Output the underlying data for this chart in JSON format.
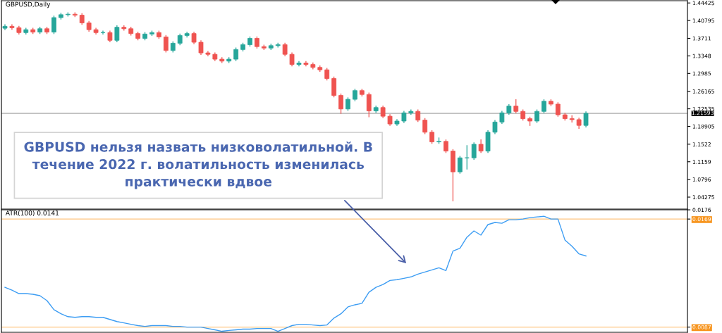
{
  "chart_data": [
    {
      "type": "candlestick",
      "title": "GBPUSD,Daily",
      "annotations": [
        "GBPUSD нельзя назвать низковолатильной. В\nтечение 2022 г. волатильность изменилась\nпрактически вдвое"
      ],
      "colors": [
        "#26a69a",
        "#ef5350",
        "#ef5350",
        "#26a69a",
        "#ef5350",
        "#26a69a",
        "#ef5350",
        "#26a69a",
        "#26a69a",
        "#26a69a",
        "#ef5350",
        "#ef5350",
        "#ef5350",
        "#ef5350",
        "#26a69a",
        "#ef5350",
        "#26a69a",
        "#ef5350",
        "#ef5350",
        "#ef5350",
        "#26a69a",
        "#26a69a",
        "#ef5350",
        "#ef5350",
        "#26a69a",
        "#26a69a",
        "#26a69a",
        "#ef5350",
        "#ef5350",
        "#ef5350",
        "#ef5350",
        "#ef5350",
        "#26a69a",
        "#26a69a",
        "#26a69a",
        "#26a69a",
        "#ef5350",
        "#ef5350",
        "#26a69a",
        "#26a69a",
        "#ef5350",
        "#ef5350",
        "#26a69a",
        "#ef5350",
        "#ef5350",
        "#ef5350",
        "#ef5350",
        "#ef5350",
        "#ef5350",
        "#26a69a",
        "#26a69a",
        "#ef5350",
        "#ef5350",
        "#26a69a",
        "#ef5350",
        "#ef5350",
        "#26a69a",
        "#26a69a",
        "#26a69a",
        "#ef5350",
        "#ef5350",
        "#ef5350",
        "#26a69a",
        "#ef5350",
        "#ef5350",
        "#26a69a",
        "#26a69a",
        "#26a69a",
        "#ef5350",
        "#26a69a",
        "#26a69a",
        "#26a69a",
        "#26a69a",
        "#ef5350",
        "#ef5350",
        "#ef5350",
        "#26a69a",
        "#26a69a",
        "#ef5350",
        "#ef5350",
        "#ef5350",
        "#ef5350",
        "#ef5350",
        "#26a69a",
        null,
        null,
        null,
        null,
        null,
        null,
        null,
        null,
        null,
        null,
        null,
        null,
        null,
        null
      ],
      "ylim": [
        1.018,
        1.449
      ],
      "yticks": [
        1.04275,
        1.0796,
        1.1159,
        1.1522,
        1.18905,
        1.22535,
        1.26165,
        1.2985,
        1.3348,
        1.3711,
        1.40795,
        1.44425
      ],
      "ref_lines": [
        {
          "axis": "y",
          "value": 1.21593,
          "label": "1.21593",
          "color": "#b0b0b0"
        }
      ],
      "categories": [
        null,
        null,
        null,
        null,
        null,
        null,
        null,
        null,
        null,
        null,
        null,
        null,
        null,
        null,
        null,
        null,
        null,
        null,
        null,
        null,
        null,
        null,
        null,
        null,
        null,
        null,
        null,
        null,
        null,
        null,
        null,
        null,
        null,
        null,
        null,
        null,
        null,
        null,
        null,
        null,
        null,
        null,
        null,
        null,
        null,
        null,
        null,
        null,
        null,
        null,
        null,
        null,
        null,
        null,
        null,
        null,
        null,
        null,
        null,
        null,
        null,
        null,
        null,
        null,
        null,
        null,
        null,
        null,
        null,
        null,
        null,
        null,
        null,
        null,
        null,
        null,
        null,
        null,
        null,
        null,
        null,
        null,
        null,
        null,
        null,
        null,
        null,
        null,
        null,
        null,
        null,
        null,
        null,
        null,
        null,
        null,
        null,
        null
      ],
      "ohlc": [
        [
          1.392,
          1.4,
          1.388,
          1.396
        ],
        [
          1.396,
          1.4,
          1.389,
          1.393
        ],
        [
          1.393,
          1.397,
          1.379,
          1.383
        ],
        [
          1.383,
          1.393,
          1.379,
          1.389
        ],
        [
          1.389,
          1.393,
          1.38,
          1.384
        ],
        [
          1.384,
          1.395,
          1.38,
          1.391
        ],
        [
          1.391,
          1.395,
          1.38,
          1.384
        ],
        [
          1.384,
          1.418,
          1.38,
          1.414
        ],
        [
          1.414,
          1.424,
          1.41,
          1.42
        ],
        [
          1.42,
          1.425,
          1.416,
          1.421
        ],
        [
          1.421,
          1.425,
          1.415,
          1.419
        ],
        [
          1.419,
          1.423,
          1.399,
          1.403
        ],
        [
          1.403,
          1.407,
          1.385,
          1.389
        ],
        [
          1.389,
          1.393,
          1.379,
          1.383
        ],
        [
          1.383,
          1.387,
          1.379,
          1.383
        ],
        [
          1.383,
          1.387,
          1.363,
          1.367
        ],
        [
          1.367,
          1.398,
          1.363,
          1.394
        ],
        [
          1.394,
          1.398,
          1.387,
          1.391
        ],
        [
          1.391,
          1.395,
          1.377,
          1.381
        ],
        [
          1.381,
          1.385,
          1.367,
          1.371
        ],
        [
          1.371,
          1.384,
          1.367,
          1.38
        ],
        [
          1.38,
          1.387,
          1.376,
          1.383
        ],
        [
          1.383,
          1.387,
          1.37,
          1.374
        ],
        [
          1.374,
          1.378,
          1.342,
          1.346
        ],
        [
          1.346,
          1.365,
          1.342,
          1.361
        ],
        [
          1.361,
          1.381,
          1.357,
          1.377
        ],
        [
          1.377,
          1.385,
          1.373,
          1.381
        ],
        [
          1.381,
          1.385,
          1.359,
          1.363
        ],
        [
          1.363,
          1.367,
          1.337,
          1.341
        ],
        [
          1.341,
          1.345,
          1.334,
          1.338
        ],
        [
          1.338,
          1.342,
          1.324,
          1.328
        ],
        [
          1.328,
          1.332,
          1.32,
          1.324
        ],
        [
          1.324,
          1.332,
          1.32,
          1.328
        ],
        [
          1.328,
          1.352,
          1.324,
          1.348
        ],
        [
          1.348,
          1.362,
          1.344,
          1.358
        ],
        [
          1.358,
          1.375,
          1.354,
          1.371
        ],
        [
          1.371,
          1.375,
          1.35,
          1.354
        ],
        [
          1.354,
          1.358,
          1.347,
          1.351
        ],
        [
          1.351,
          1.36,
          1.347,
          1.356
        ],
        [
          1.356,
          1.362,
          1.352,
          1.358
        ],
        [
          1.358,
          1.362,
          1.334,
          1.338
        ],
        [
          1.338,
          1.342,
          1.313,
          1.317
        ],
        [
          1.317,
          1.324,
          1.313,
          1.32
        ],
        [
          1.32,
          1.324,
          1.313,
          1.317
        ],
        [
          1.317,
          1.321,
          1.307,
          1.311
        ],
        [
          1.311,
          1.315,
          1.302,
          1.306
        ],
        [
          1.306,
          1.31,
          1.284,
          1.288
        ],
        [
          1.288,
          1.292,
          1.249,
          1.253
        ],
        [
          1.253,
          1.257,
          1.215,
          1.225
        ],
        [
          1.225,
          1.249,
          1.221,
          1.245
        ],
        [
          1.245,
          1.267,
          1.241,
          1.263
        ],
        [
          1.263,
          1.267,
          1.251,
          1.255
        ],
        [
          1.255,
          1.259,
          1.208,
          1.221
        ],
        [
          1.221,
          1.232,
          1.217,
          1.228
        ],
        [
          1.228,
          1.232,
          1.206,
          1.21
        ],
        [
          1.21,
          1.214,
          1.19,
          1.194
        ],
        [
          1.194,
          1.204,
          1.19,
          1.2
        ],
        [
          1.2,
          1.221,
          1.196,
          1.217
        ],
        [
          1.217,
          1.224,
          1.213,
          1.22
        ],
        [
          1.22,
          1.224,
          1.198,
          1.202
        ],
        [
          1.202,
          1.206,
          1.173,
          1.177
        ],
        [
          1.177,
          1.181,
          1.153,
          1.157
        ],
        [
          1.157,
          1.166,
          1.153,
          1.158
        ],
        [
          1.158,
          1.162,
          1.134,
          1.138
        ],
        [
          1.138,
          1.142,
          1.034,
          1.095
        ],
        [
          1.095,
          1.128,
          1.091,
          1.124
        ],
        [
          1.124,
          1.15,
          1.1,
          1.124
        ],
        [
          1.124,
          1.156,
          1.12,
          1.152
        ],
        [
          1.152,
          1.162,
          1.134,
          1.138
        ],
        [
          1.138,
          1.181,
          1.134,
          1.177
        ],
        [
          1.177,
          1.202,
          1.173,
          1.198
        ],
        [
          1.198,
          1.221,
          1.194,
          1.217
        ],
        [
          1.217,
          1.235,
          1.213,
          1.231
        ],
        [
          1.231,
          1.245,
          1.216,
          1.22
        ],
        [
          1.22,
          1.224,
          1.201,
          1.205
        ],
        [
          1.205,
          1.209,
          1.19,
          1.2
        ],
        [
          1.2,
          1.224,
          1.196,
          1.22
        ],
        [
          1.22,
          1.245,
          1.216,
          1.241
        ],
        [
          1.241,
          1.245,
          1.231,
          1.235
        ],
        [
          1.235,
          1.239,
          1.209,
          1.213
        ],
        [
          1.213,
          1.217,
          1.201,
          1.205
        ],
        [
          1.205,
          1.212,
          1.197,
          1.203
        ],
        [
          1.203,
          1.207,
          1.184,
          1.191
        ],
        [
          1.191,
          1.22,
          1.187,
          1.216
        ],
        null,
        null,
        null,
        null,
        null,
        null,
        null,
        null,
        null,
        null,
        null,
        null,
        null,
        null
      ]
    },
    {
      "type": "line",
      "title": "ATR(100) 0.0141",
      "ylim": [
        0.0083,
        0.0176
      ],
      "yticks": [
        0.0087,
        0.0169,
        0.0176
      ],
      "ref_lines": [
        {
          "axis": "y",
          "value": 0.0169,
          "color": "#ffc680"
        },
        {
          "axis": "y",
          "value": 0.0087,
          "color": "#ffc680"
        }
      ],
      "categories": [
        null,
        null,
        null,
        null,
        null,
        null,
        null,
        null,
        null,
        null,
        null,
        null,
        null,
        null,
        null,
        null,
        null,
        null,
        null,
        null,
        null,
        null,
        null,
        null,
        null,
        null,
        null,
        null,
        null,
        null,
        null,
        null,
        null,
        null,
        null,
        null,
        null,
        null,
        null,
        null,
        null,
        null,
        null,
        null,
        null,
        null,
        null,
        null,
        null,
        null,
        null,
        null,
        null,
        null,
        null,
        null,
        null,
        null,
        null,
        null,
        null,
        null,
        null,
        null,
        null,
        null,
        null,
        null,
        null,
        null,
        null,
        null,
        null,
        null,
        null,
        null,
        null,
        null,
        null,
        null,
        null,
        null,
        null,
        null,
        null,
        null,
        null,
        null,
        null,
        null,
        null,
        null,
        null,
        null,
        null,
        null,
        null,
        null
      ],
      "series": [
        {
          "color": "#3d9df3",
          "values": [
            0.01172,
            0.0115,
            0.01124,
            0.01124,
            0.01119,
            0.01108,
            0.01071,
            0.01002,
            0.00971,
            0.00949,
            0.00944,
            0.00949,
            0.00949,
            0.00944,
            0.00944,
            0.00928,
            0.00912,
            0.00902,
            0.00891,
            0.00881,
            0.00875,
            0.00881,
            0.00881,
            0.00881,
            0.00875,
            0.00875,
            0.0087,
            0.0087,
            0.0087,
            0.00859,
            0.00849,
            0.00838,
            0.00844,
            0.00849,
            0.00854,
            0.00854,
            0.00859,
            0.00859,
            0.00859,
            0.00838,
            0.00859,
            0.00881,
            0.00891,
            0.00891,
            0.00886,
            0.00881,
            0.00886,
            0.00938,
            0.00971,
            0.01023,
            0.01039,
            0.0105,
            0.01134,
            0.01172,
            0.01193,
            0.01224,
            0.0123,
            0.0124,
            0.01251,
            0.01272,
            0.01288,
            0.01304,
            0.0132,
            0.01299,
            0.01447,
            0.01468,
            0.01552,
            0.016,
            0.01568,
            0.01648,
            0.01664,
            0.01658,
            0.01685,
            0.01685,
            0.0169,
            0.01701,
            0.01706,
            0.01711,
            0.0169,
            0.0169,
            0.01531,
            0.01484,
            0.01426,
            0.0141,
            null,
            null,
            null,
            null,
            null,
            null,
            null,
            null,
            null,
            null,
            null,
            null,
            null,
            null
          ]
        }
      ]
    }
  ]
}
